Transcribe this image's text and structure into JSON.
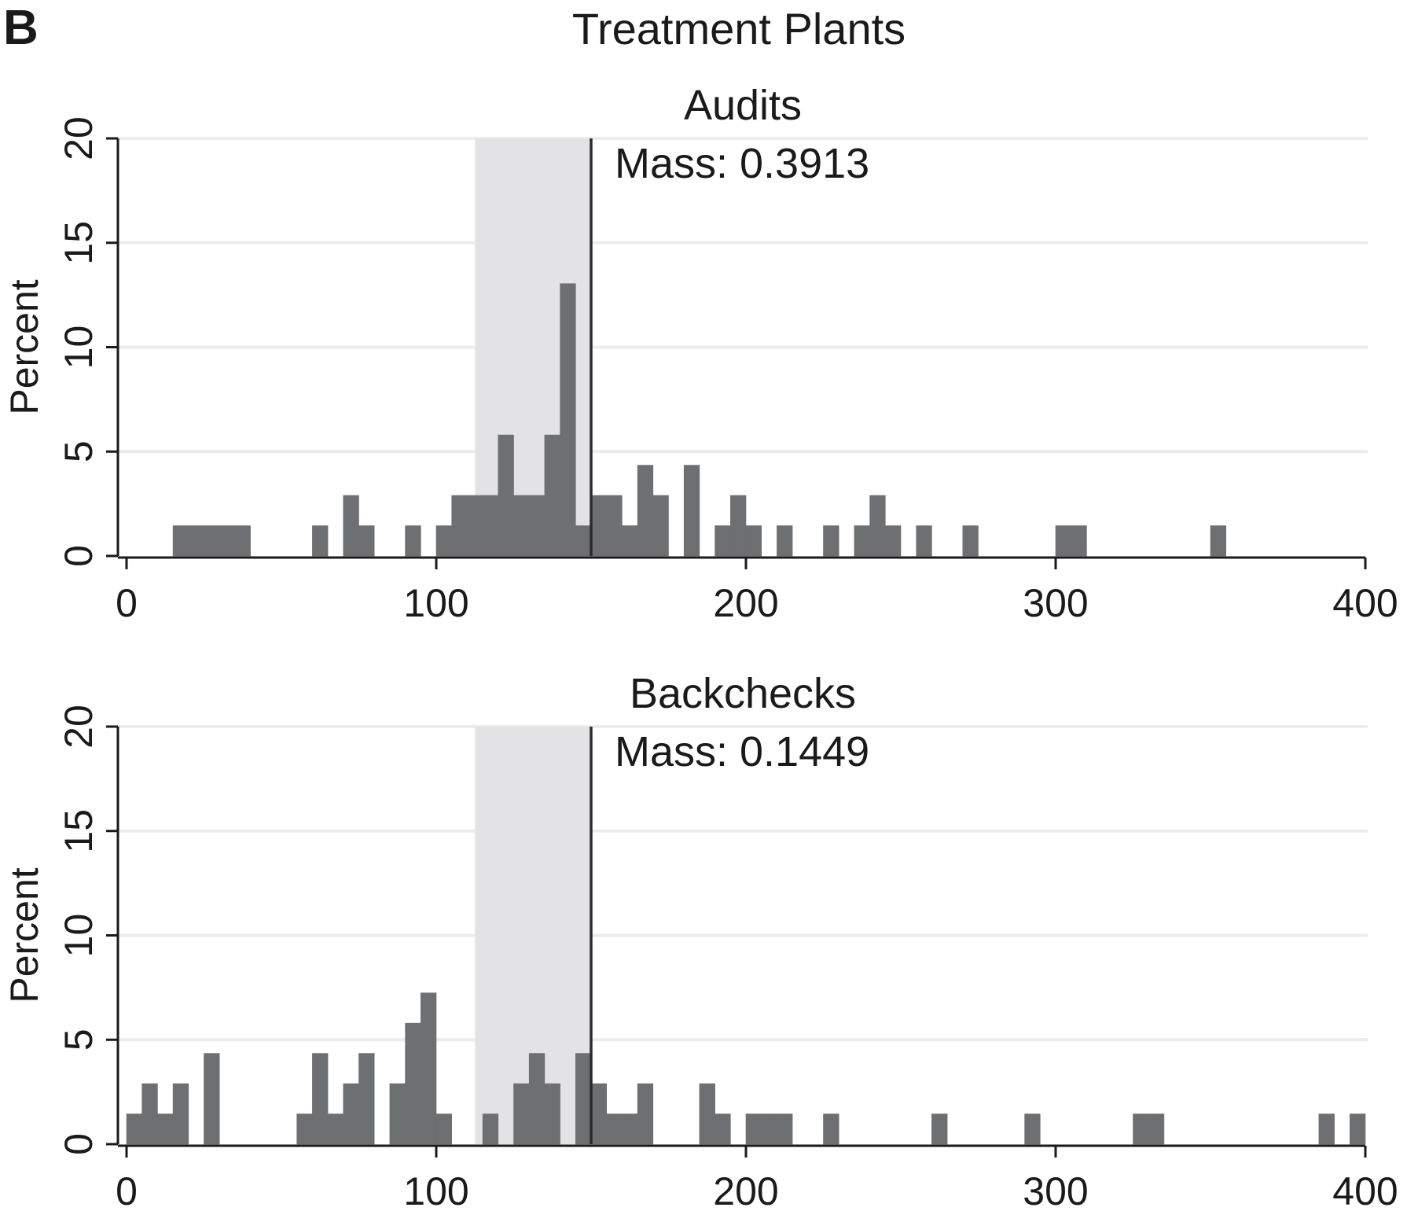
{
  "figure": {
    "panel_letter": "B",
    "title": "Treatment Plants"
  },
  "chart_data": [
    {
      "type": "bar",
      "title": "Audits",
      "xlabel": "",
      "ylabel": "Percent",
      "xlim": [
        0,
        400
      ],
      "ylim": [
        0,
        20
      ],
      "xticks": [
        0,
        100,
        200,
        300,
        400
      ],
      "yticks": [
        0,
        5,
        10,
        15,
        20
      ],
      "bin_width": 5,
      "grid": true,
      "shaded_region": [
        112.5,
        150
      ],
      "vline": 150,
      "annotation": "Mass: 0.3913",
      "bins": [
        {
          "x": 15,
          "y": 1.449
        },
        {
          "x": 20,
          "y": 1.449
        },
        {
          "x": 25,
          "y": 1.449
        },
        {
          "x": 30,
          "y": 1.449
        },
        {
          "x": 35,
          "y": 1.449
        },
        {
          "x": 60,
          "y": 1.449
        },
        {
          "x": 70,
          "y": 2.899
        },
        {
          "x": 75,
          "y": 1.449
        },
        {
          "x": 90,
          "y": 1.449
        },
        {
          "x": 100,
          "y": 1.449
        },
        {
          "x": 105,
          "y": 2.899
        },
        {
          "x": 110,
          "y": 2.899
        },
        {
          "x": 115,
          "y": 2.899
        },
        {
          "x": 120,
          "y": 5.797
        },
        {
          "x": 125,
          "y": 2.899
        },
        {
          "x": 130,
          "y": 2.899
        },
        {
          "x": 135,
          "y": 5.797
        },
        {
          "x": 140,
          "y": 13.043
        },
        {
          "x": 145,
          "y": 1.449
        },
        {
          "x": 150,
          "y": 2.899
        },
        {
          "x": 155,
          "y": 2.899
        },
        {
          "x": 160,
          "y": 1.449
        },
        {
          "x": 165,
          "y": 4.348
        },
        {
          "x": 170,
          "y": 2.899
        },
        {
          "x": 180,
          "y": 4.348
        },
        {
          "x": 190,
          "y": 1.449
        },
        {
          "x": 195,
          "y": 2.899
        },
        {
          "x": 200,
          "y": 1.449
        },
        {
          "x": 210,
          "y": 1.449
        },
        {
          "x": 225,
          "y": 1.449
        },
        {
          "x": 235,
          "y": 1.449
        },
        {
          "x": 240,
          "y": 2.899
        },
        {
          "x": 245,
          "y": 1.449
        },
        {
          "x": 255,
          "y": 1.449
        },
        {
          "x": 270,
          "y": 1.449
        },
        {
          "x": 300,
          "y": 1.449
        },
        {
          "x": 305,
          "y": 1.449
        },
        {
          "x": 350,
          "y": 1.449
        }
      ]
    },
    {
      "type": "bar",
      "title": "Backchecks",
      "xlabel": "",
      "ylabel": "Percent",
      "xlim": [
        0,
        400
      ],
      "ylim": [
        0,
        20
      ],
      "xticks": [
        0,
        100,
        200,
        300,
        400
      ],
      "yticks": [
        0,
        5,
        10,
        15,
        20
      ],
      "bin_width": 5,
      "grid": true,
      "shaded_region": [
        112.5,
        150
      ],
      "vline": 150,
      "annotation": "Mass: 0.1449",
      "bins": [
        {
          "x": 0,
          "y": 1.449
        },
        {
          "x": 5,
          "y": 2.899
        },
        {
          "x": 10,
          "y": 1.449
        },
        {
          "x": 15,
          "y": 2.899
        },
        {
          "x": 25,
          "y": 4.348
        },
        {
          "x": 55,
          "y": 1.449
        },
        {
          "x": 60,
          "y": 4.348
        },
        {
          "x": 65,
          "y": 1.449
        },
        {
          "x": 70,
          "y": 2.899
        },
        {
          "x": 75,
          "y": 4.348
        },
        {
          "x": 85,
          "y": 2.899
        },
        {
          "x": 90,
          "y": 5.797
        },
        {
          "x": 95,
          "y": 7.246
        },
        {
          "x": 100,
          "y": 1.449
        },
        {
          "x": 115,
          "y": 1.449
        },
        {
          "x": 125,
          "y": 2.899
        },
        {
          "x": 130,
          "y": 4.348
        },
        {
          "x": 135,
          "y": 2.899
        },
        {
          "x": 145,
          "y": 4.348
        },
        {
          "x": 150,
          "y": 2.899
        },
        {
          "x": 155,
          "y": 1.449
        },
        {
          "x": 160,
          "y": 1.449
        },
        {
          "x": 165,
          "y": 2.899
        },
        {
          "x": 185,
          "y": 2.899
        },
        {
          "x": 190,
          "y": 1.449
        },
        {
          "x": 200,
          "y": 1.449
        },
        {
          "x": 205,
          "y": 1.449
        },
        {
          "x": 210,
          "y": 1.449
        },
        {
          "x": 225,
          "y": 1.449
        },
        {
          "x": 260,
          "y": 1.449
        },
        {
          "x": 290,
          "y": 1.449
        },
        {
          "x": 325,
          "y": 1.449
        },
        {
          "x": 330,
          "y": 1.449
        },
        {
          "x": 385,
          "y": 1.449
        },
        {
          "x": 395,
          "y": 1.449
        }
      ]
    }
  ]
}
